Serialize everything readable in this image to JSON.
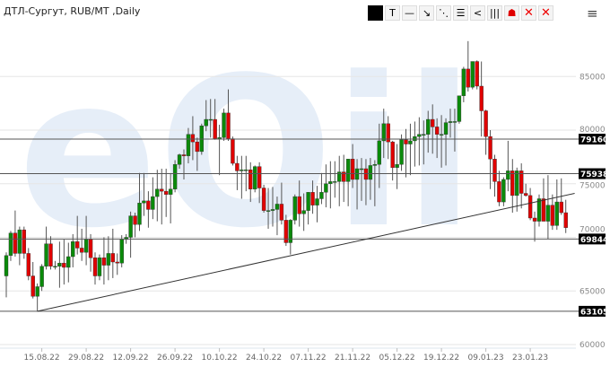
{
  "header": {
    "title": "ДТЛ-Сургут, RUB/MT ,Daily",
    "menu_icon": "hamburger-icon"
  },
  "toolbar": [
    {
      "name": "color-swatch-button",
      "glyph": "",
      "style": "black"
    },
    {
      "name": "text-tool-button",
      "glyph": "T"
    },
    {
      "name": "horizontal-line-button",
      "glyph": "—"
    },
    {
      "name": "trend-line-button",
      "glyph": "↘"
    },
    {
      "name": "parallel-lines-button",
      "glyph": "⋱"
    },
    {
      "name": "horizontal-channel-button",
      "glyph": "☰"
    },
    {
      "name": "fan-tool-button",
      "glyph": "<"
    },
    {
      "name": "vertical-lines-button",
      "glyph": "|||"
    },
    {
      "name": "pivot-levels-button",
      "glyph": "☗",
      "color": "#e00000"
    },
    {
      "name": "delete-selected-button",
      "glyph": "✕",
      "style": "redx"
    },
    {
      "name": "delete-all-button",
      "glyph": "✕",
      "style": "redx"
    }
  ],
  "watermark": "eOil.ru",
  "colors": {
    "up": "#0a8a0a",
    "down": "#e00000",
    "wick": "#555555",
    "watermark": "#e6eef8"
  },
  "chart_data": {
    "type": "candlestick",
    "title": "ДТЛ-Сургут, RUB/MT ,Daily",
    "ylim": [
      60000,
      89000
    ],
    "yticks": [
      60000,
      65000,
      70000,
      75000,
      80000,
      85000
    ],
    "grid": "horizontal",
    "xticks": [
      {
        "bar": 8,
        "label": "15.08.22"
      },
      {
        "bar": 18,
        "label": "29.08.22"
      },
      {
        "bar": 28,
        "label": "12.09.22"
      },
      {
        "bar": 38,
        "label": "26.09.22"
      },
      {
        "bar": 48,
        "label": "10.10.22"
      },
      {
        "bar": 58,
        "label": "24.10.22"
      },
      {
        "bar": 68,
        "label": "07.11.22"
      },
      {
        "bar": 78,
        "label": "21.11.22"
      },
      {
        "bar": 88,
        "label": "05.12.22"
      },
      {
        "bar": 98,
        "label": "19.12.22"
      },
      {
        "bar": 108,
        "label": "09.01.23"
      },
      {
        "bar": 118,
        "label": "23.01.23"
      }
    ],
    "levels": [
      79160,
      75938,
      69844,
      63105
    ],
    "trendline": {
      "from": {
        "bar": 7,
        "value": 63105
      },
      "to": {
        "bar": 128,
        "value": 74100
      }
    },
    "ohlc": [
      [
        66400,
        68600,
        64400,
        68300
      ],
      [
        68300,
        70600,
        67800,
        70400
      ],
      [
        70400,
        72500,
        68200,
        68500
      ],
      [
        68500,
        71000,
        67400,
        70700
      ],
      [
        70700,
        71000,
        68000,
        68500
      ],
      [
        68500,
        69000,
        66000,
        66400
      ],
      [
        66400,
        67700,
        64300,
        64500
      ],
      [
        64500,
        65700,
        63105,
        65400
      ],
      [
        65400,
        67500,
        65000,
        67300
      ],
      [
        67300,
        71000,
        67000,
        69400
      ],
      [
        69400,
        70100,
        67000,
        67300
      ],
      [
        67300,
        67800,
        67000,
        67300
      ],
      [
        67300,
        69600,
        65300,
        67600
      ],
      [
        67600,
        69800,
        65600,
        67200
      ],
      [
        67200,
        69500,
        65800,
        68200
      ],
      [
        68200,
        70300,
        67200,
        69600
      ],
      [
        69600,
        72000,
        68400,
        69000
      ],
      [
        69000,
        70800,
        67800,
        68600
      ],
      [
        68600,
        72000,
        67400,
        69800
      ],
      [
        69800,
        70300,
        66800,
        68100
      ],
      [
        68100,
        68600,
        65600,
        66400
      ],
      [
        66400,
        68400,
        66000,
        68100
      ],
      [
        68100,
        70000,
        65600,
        67400
      ],
      [
        67400,
        70100,
        66000,
        68500
      ],
      [
        68500,
        70800,
        66200,
        67700
      ],
      [
        67700,
        68500,
        66500,
        67600
      ],
      [
        67600,
        70200,
        67200,
        69800
      ],
      [
        69800,
        70300,
        69400,
        70000
      ],
      [
        70000,
        72400,
        68100,
        72000
      ],
      [
        72000,
        72300,
        70000,
        71200
      ],
      [
        71200,
        76000,
        70600,
        73200
      ],
      [
        73200,
        76000,
        72000,
        73400
      ],
      [
        73400,
        74300,
        70900,
        72600
      ],
      [
        72600,
        75600,
        71700,
        73800
      ],
      [
        73800,
        76300,
        71500,
        74500
      ],
      [
        74500,
        76400,
        71200,
        74300
      ],
      [
        74300,
        76400,
        71900,
        74000
      ],
      [
        74000,
        76000,
        71300,
        74500
      ],
      [
        74500,
        77200,
        74200,
        76800
      ],
      [
        76800,
        77800,
        76400,
        77700
      ],
      [
        77700,
        78200,
        75400,
        77600
      ],
      [
        77600,
        80200,
        76900,
        79600
      ],
      [
        79600,
        81300,
        77200,
        78900
      ],
      [
        78900,
        79300,
        76200,
        78000
      ],
      [
        78000,
        80600,
        77700,
        80400
      ],
      [
        80400,
        82800,
        79900,
        81000
      ],
      [
        81000,
        82900,
        79300,
        81000
      ],
      [
        81000,
        82900,
        79100,
        79200
      ],
      [
        79200,
        80500,
        75800,
        79300
      ],
      [
        79300,
        82000,
        79000,
        81600
      ],
      [
        81600,
        83800,
        79000,
        79200
      ],
      [
        79200,
        79400,
        76700,
        76900
      ],
      [
        76900,
        77600,
        74400,
        76200
      ],
      [
        76200,
        77600,
        73600,
        76300
      ],
      [
        76300,
        77600,
        74300,
        76300
      ],
      [
        76300,
        77000,
        73300,
        74500
      ],
      [
        74500,
        76700,
        74200,
        76600
      ],
      [
        76600,
        77000,
        73200,
        74600
      ],
      [
        74600,
        74900,
        72300,
        72500
      ],
      [
        72500,
        74600,
        70800,
        72500
      ],
      [
        72500,
        74700,
        71000,
        72600
      ],
      [
        72600,
        73800,
        70200,
        73100
      ],
      [
        73100,
        75100,
        71200,
        71600
      ],
      [
        71600,
        72100,
        69200,
        69500
      ],
      [
        69500,
        71700,
        68400,
        71600
      ],
      [
        71600,
        74000,
        71200,
        73800
      ],
      [
        73800,
        75300,
        71000,
        72200
      ],
      [
        72200,
        74100,
        70600,
        72500
      ],
      [
        72500,
        74200,
        71200,
        74200
      ],
      [
        74200,
        75300,
        72200,
        73000
      ],
      [
        73000,
        74800,
        71400,
        73600
      ],
      [
        73600,
        76000,
        73100,
        74200
      ],
      [
        74200,
        76800,
        72800,
        75000
      ],
      [
        75000,
        77100,
        72700,
        75200
      ],
      [
        75200,
        77100,
        73700,
        75200
      ],
      [
        75200,
        77600,
        72900,
        76100
      ],
      [
        76100,
        77700,
        73300,
        75200
      ],
      [
        75200,
        77300,
        72900,
        77300
      ],
      [
        77300,
        78700,
        74600,
        75400
      ],
      [
        75400,
        77300,
        72600,
        76400
      ],
      [
        76400,
        77400,
        73400,
        76400
      ],
      [
        76400,
        77300,
        73000,
        75400
      ],
      [
        75400,
        77400,
        73500,
        76700
      ],
      [
        76700,
        77200,
        72900,
        76800
      ],
      [
        76800,
        80600,
        74600,
        79000
      ],
      [
        79000,
        82000,
        77400,
        80600
      ],
      [
        80600,
        81300,
        77300,
        78900
      ],
      [
        78900,
        79000,
        75300,
        76500
      ],
      [
        76500,
        78700,
        74500,
        76800
      ],
      [
        76800,
        79600,
        76200,
        79100
      ],
      [
        79100,
        80100,
        75600,
        78700
      ],
      [
        78700,
        80600,
        75800,
        79000
      ],
      [
        79000,
        80800,
        76600,
        79400
      ],
      [
        79400,
        81200,
        76700,
        79600
      ],
      [
        79600,
        80900,
        76800,
        79600
      ],
      [
        79600,
        81800,
        77900,
        81000
      ],
      [
        81000,
        82400,
        77800,
        80300
      ],
      [
        80300,
        81100,
        77400,
        79600
      ],
      [
        79600,
        81400,
        76500,
        79600
      ],
      [
        79600,
        81100,
        76700,
        80700
      ],
      [
        80700,
        82000,
        79300,
        80800
      ],
      [
        80800,
        82000,
        78000,
        80800
      ],
      [
        80800,
        83200,
        80600,
        83200
      ],
      [
        83200,
        85900,
        82600,
        85700
      ],
      [
        85700,
        88300,
        83600,
        84000
      ],
      [
        84000,
        86400,
        83800,
        86400
      ],
      [
        86400,
        86500,
        83800,
        84100
      ],
      [
        84100,
        86400,
        79400,
        81800
      ],
      [
        81800,
        81900,
        77700,
        79400
      ],
      [
        79400,
        80000,
        74500,
        77300
      ],
      [
        77300,
        77700,
        73800,
        75200
      ],
      [
        75200,
        76200,
        72900,
        73300
      ],
      [
        73300,
        75600,
        72900,
        75400
      ],
      [
        75400,
        79000,
        74300,
        76200
      ],
      [
        76200,
        77300,
        72300,
        73900
      ],
      [
        73900,
        76500,
        72400,
        76200
      ],
      [
        76200,
        76900,
        72700,
        74100
      ],
      [
        74100,
        75000,
        73800,
        73900
      ],
      [
        73900,
        74600,
        71600,
        71800
      ],
      [
        71800,
        72400,
        69600,
        71500
      ],
      [
        71500,
        74000,
        71000,
        73600
      ],
      [
        73600,
        75500,
        71500,
        71500
      ],
      [
        71500,
        75800,
        69844,
        73000
      ],
      [
        73000,
        74000,
        70700,
        71100
      ],
      [
        71100,
        75400,
        70700,
        73300
      ],
      [
        73300,
        75500,
        72100,
        72300
      ],
      [
        72300,
        73500,
        70400,
        70900
      ]
    ]
  }
}
